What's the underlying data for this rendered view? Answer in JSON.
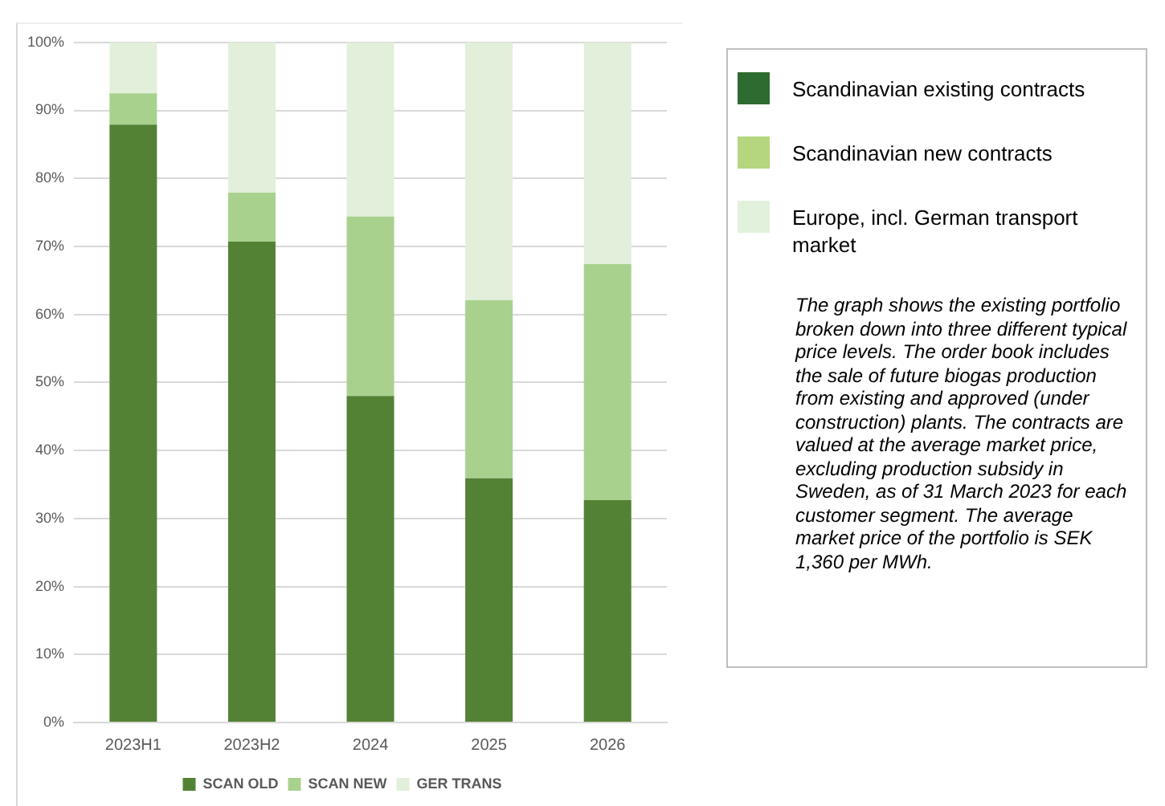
{
  "chart_data": [
    {
      "type": "bar",
      "stacked": true,
      "categories": [
        "2023H1",
        "2023H2",
        "2024",
        "2025",
        "2026"
      ],
      "series": [
        {
          "name": "SCAN OLD",
          "color": "#548235",
          "values": [
            87.9,
            70.7,
            48.0,
            35.9,
            32.7
          ]
        },
        {
          "name": "SCAN NEW",
          "color": "#a9d18e",
          "values": [
            4.6,
            7.2,
            26.4,
            26.2,
            34.7
          ]
        },
        {
          "name": "GER TRANS",
          "color": "#e2efda",
          "values": [
            7.5,
            22.1,
            25.6,
            37.9,
            32.6
          ]
        }
      ],
      "ylim": [
        0,
        100
      ],
      "yticks": [
        {
          "value": 0,
          "label": "0%"
        },
        {
          "value": 10,
          "label": "10%"
        },
        {
          "value": 20,
          "label": "20%"
        },
        {
          "value": 30,
          "label": "30%"
        },
        {
          "value": 40,
          "label": "40%"
        },
        {
          "value": 50,
          "label": "50%"
        },
        {
          "value": 60,
          "label": "60%"
        },
        {
          "value": 70,
          "label": "70%"
        },
        {
          "value": 80,
          "label": "80%"
        },
        {
          "value": 90,
          "label": "90%"
        },
        {
          "value": 100,
          "label": "100%"
        }
      ],
      "grid": "y",
      "legend": "bottom"
    },
    {
      "type": "other",
      "categories": [
        "Scandinavian existing contracts",
        "Scandinavian new contracts",
        "Europe, incl. German transport market"
      ],
      "colors": [
        "#2e6b30",
        "#b5d67e",
        "#e2f1dc"
      ],
      "annotations": [
        "The graph shows the existing portfolio broken down into three different typical price levels. The order book includes the sale of future biogas production from existing and approved (under construction) plants. The contracts are valued at the average market price, excluding production subsidy in Sweden, as of 31 March 2023 for each customer segment. The average market price of the portfolio is SEK 1,360 per MWh."
      ]
    }
  ]
}
